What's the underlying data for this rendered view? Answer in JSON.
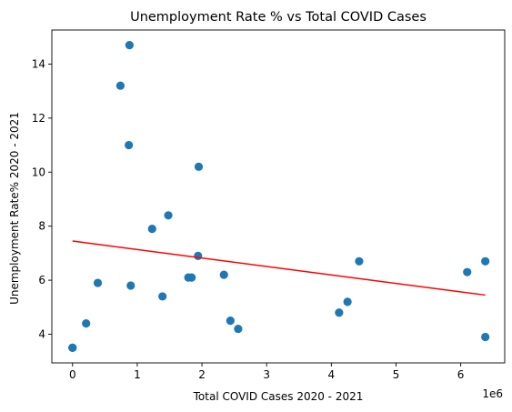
{
  "chart_data": {
    "type": "scatter",
    "title": "Unemployment Rate % vs Total COVID Cases",
    "xlabel": "Total COVID Cases 2020 - 2021",
    "ylabel": "Unemployment Rate% 2020 - 2021",
    "x_offset_label": "1e6",
    "xlim": [
      -0.32,
      6.68
    ],
    "ylim": [
      2.94,
      15.26
    ],
    "xticks": [
      0,
      1,
      2,
      3,
      4,
      5,
      6
    ],
    "yticks": [
      4,
      6,
      8,
      10,
      12,
      14
    ],
    "grid": false,
    "point_color": "#1f77b4",
    "line_color": "#ff0000",
    "points": [
      {
        "x": 0.0,
        "y": 3.5
      },
      {
        "x": 0.0,
        "y": 3.5
      },
      {
        "x": 0.21,
        "y": 4.4
      },
      {
        "x": 0.39,
        "y": 5.9
      },
      {
        "x": 0.74,
        "y": 13.2
      },
      {
        "x": 0.87,
        "y": 11.0
      },
      {
        "x": 0.88,
        "y": 14.7
      },
      {
        "x": 0.9,
        "y": 5.8
      },
      {
        "x": 1.23,
        "y": 7.9
      },
      {
        "x": 1.39,
        "y": 5.4
      },
      {
        "x": 1.48,
        "y": 8.4
      },
      {
        "x": 1.79,
        "y": 6.1
      },
      {
        "x": 1.84,
        "y": 6.1
      },
      {
        "x": 1.94,
        "y": 6.9
      },
      {
        "x": 1.95,
        "y": 10.2
      },
      {
        "x": 2.34,
        "y": 6.2
      },
      {
        "x": 2.44,
        "y": 4.5
      },
      {
        "x": 2.56,
        "y": 4.2
      },
      {
        "x": 4.12,
        "y": 4.8
      },
      {
        "x": 4.25,
        "y": 5.2
      },
      {
        "x": 4.43,
        "y": 6.7
      },
      {
        "x": 6.1,
        "y": 6.3
      },
      {
        "x": 6.38,
        "y": 6.7
      },
      {
        "x": 6.38,
        "y": 3.9
      }
    ],
    "regression_line": {
      "x": [
        0.0,
        6.38
      ],
      "y": [
        7.45,
        5.45
      ]
    }
  }
}
